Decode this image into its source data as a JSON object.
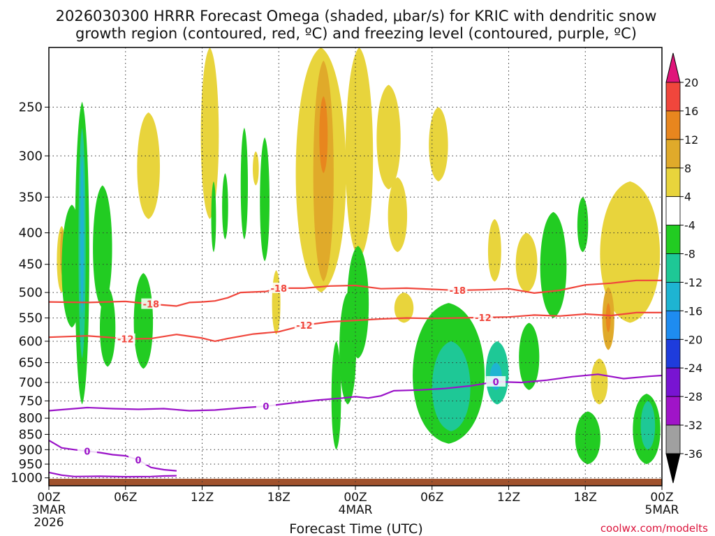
{
  "chart_data": {
    "type": "heatmap",
    "title_line1": "2026030300 HRRR Forecast Omega (shaded, μbar/s) for KRIC with dendritic snow",
    "title_line2": "growth region (contoured, red, ºC) and freezing level (contoured, purple, ºC)",
    "xlabel": "Forecast Time (UTC)",
    "credit": "coolwx.com/modelts",
    "x_range_hours": [
      0,
      48
    ],
    "y_range_hPa": [
      200,
      1030
    ],
    "x_ticks": [
      {
        "hour": 0,
        "line1": "00Z",
        "line2": "3MAR",
        "line3": "2026"
      },
      {
        "hour": 6,
        "line1": "06Z",
        "line2": "",
        "line3": ""
      },
      {
        "hour": 12,
        "line1": "12Z",
        "line2": "",
        "line3": ""
      },
      {
        "hour": 18,
        "line1": "18Z",
        "line2": "",
        "line3": ""
      },
      {
        "hour": 24,
        "line1": "00Z",
        "line2": "4MAR",
        "line3": ""
      },
      {
        "hour": 30,
        "line1": "06Z",
        "line2": "",
        "line3": ""
      },
      {
        "hour": 36,
        "line1": "12Z",
        "line2": "",
        "line3": ""
      },
      {
        "hour": 42,
        "line1": "18Z",
        "line2": "",
        "line3": ""
      },
      {
        "hour": 48,
        "line1": "00Z",
        "line2": "5MAR",
        "line3": ""
      }
    ],
    "y_ticks": [
      "250",
      "300",
      "350",
      "400",
      "450",
      "500",
      "550",
      "600",
      "650",
      "700",
      "750",
      "800",
      "850",
      "900",
      "950",
      "1000"
    ],
    "colorbar": {
      "labels": [
        "20",
        "16",
        "12",
        "8",
        "4",
        "-4",
        "-8",
        "-12",
        "-16",
        "-20",
        "-24",
        "-28",
        "-32",
        "-36"
      ],
      "over_color": "#e0157a",
      "under_color": "#000000",
      "bins": [
        {
          "from": 16,
          "to": 20,
          "color": "#f0463c"
        },
        {
          "from": 12,
          "to": 16,
          "color": "#e8861e"
        },
        {
          "from": 8,
          "to": 12,
          "color": "#e0aa2a"
        },
        {
          "from": 4,
          "to": 8,
          "color": "#e8d43c"
        },
        {
          "from": -4,
          "to": 4,
          "color": "#ffffff"
        },
        {
          "from": -8,
          "to": -4,
          "color": "#22cc22"
        },
        {
          "from": -12,
          "to": -8,
          "color": "#1ec896"
        },
        {
          "from": -16,
          "to": -12,
          "color": "#1eb4d2"
        },
        {
          "from": -20,
          "to": -16,
          "color": "#1e8cf0"
        },
        {
          "from": -24,
          "to": -20,
          "color": "#1e3cdc"
        },
        {
          "from": -28,
          "to": -24,
          "color": "#7814d2"
        },
        {
          "from": -32,
          "to": -28,
          "color": "#a014c8"
        },
        {
          "from": -36,
          "to": -32,
          "color": "#a0a0a0"
        }
      ]
    },
    "contours": [
      {
        "name": "dgz-minus18",
        "label": "-18",
        "color": "#f0463c",
        "points": [
          [
            0,
            518
          ],
          [
            3,
            519
          ],
          [
            6,
            517
          ],
          [
            8,
            522
          ],
          [
            10,
            526
          ],
          [
            11,
            519
          ],
          [
            12,
            518
          ],
          [
            13,
            516
          ],
          [
            14,
            510
          ],
          [
            15,
            500
          ],
          [
            17,
            498
          ],
          [
            18,
            492
          ],
          [
            20,
            492
          ],
          [
            22,
            488
          ],
          [
            24,
            487
          ],
          [
            26,
            493
          ],
          [
            28,
            492
          ],
          [
            30,
            494
          ],
          [
            32,
            496
          ],
          [
            34,
            495
          ],
          [
            36,
            493
          ],
          [
            38,
            501
          ],
          [
            40,
            496
          ],
          [
            42,
            486
          ],
          [
            44,
            483
          ],
          [
            46,
            478
          ],
          [
            48,
            478
          ]
        ]
      },
      {
        "name": "dgz-minus12",
        "label": "-12",
        "color": "#f0463c",
        "points": [
          [
            0,
            591
          ],
          [
            3,
            588
          ],
          [
            5,
            592
          ],
          [
            6,
            595
          ],
          [
            8,
            594
          ],
          [
            10,
            585
          ],
          [
            12,
            593
          ],
          [
            13,
            600
          ],
          [
            14,
            594
          ],
          [
            16,
            584
          ],
          [
            18,
            579
          ],
          [
            20,
            565
          ],
          [
            22,
            558
          ],
          [
            24,
            555
          ],
          [
            26,
            552
          ],
          [
            28,
            550
          ],
          [
            30,
            551
          ],
          [
            32,
            550
          ],
          [
            34,
            549
          ],
          [
            36,
            548
          ],
          [
            38,
            544
          ],
          [
            40,
            546
          ],
          [
            42,
            542
          ],
          [
            44,
            545
          ],
          [
            46,
            539
          ],
          [
            48,
            539
          ]
        ]
      },
      {
        "name": "freezing-level-main",
        "label": "0",
        "color": "#9a12c8",
        "points": [
          [
            0,
            778
          ],
          [
            2,
            772
          ],
          [
            3,
            769
          ],
          [
            5,
            772
          ],
          [
            7,
            774
          ],
          [
            9,
            772
          ],
          [
            11,
            778
          ],
          [
            13,
            776
          ],
          [
            15,
            770
          ],
          [
            17,
            765
          ],
          [
            19,
            756
          ],
          [
            21,
            748
          ],
          [
            23,
            742
          ],
          [
            24,
            738
          ],
          [
            25,
            742
          ],
          [
            26,
            736
          ],
          [
            27,
            722
          ],
          [
            29,
            720
          ],
          [
            31,
            716
          ],
          [
            33,
            709
          ],
          [
            35,
            698
          ],
          [
            37,
            700
          ],
          [
            39,
            694
          ],
          [
            41,
            685
          ],
          [
            43,
            679
          ],
          [
            45,
            690
          ],
          [
            47,
            684
          ],
          [
            48,
            682
          ]
        ]
      },
      {
        "name": "freezing-level-low",
        "label": "0",
        "color": "#9a12c8",
        "points": [
          [
            0,
            869
          ],
          [
            1,
            894
          ],
          [
            2,
            900
          ],
          [
            3,
            905
          ],
          [
            4,
            910
          ],
          [
            5,
            917
          ],
          [
            6,
            921
          ],
          [
            7,
            935
          ],
          [
            8,
            962
          ],
          [
            9,
            970
          ],
          [
            10,
            974
          ]
        ]
      },
      {
        "name": "freezing-level-surface",
        "label": "",
        "color": "#9a12c8",
        "points": [
          [
            0,
            980
          ],
          [
            1,
            990
          ],
          [
            2,
            995
          ],
          [
            4,
            994
          ],
          [
            6,
            996
          ],
          [
            8,
            995
          ],
          [
            9,
            993
          ],
          [
            10,
            992
          ]
        ]
      }
    ],
    "omega_regions": [
      {
        "kind": "up",
        "value": 6,
        "cx": 1,
        "p": [
          390,
          500
        ],
        "w": 0.8
      },
      {
        "kind": "up",
        "value": 10,
        "cx": 1.05,
        "p": [
          395,
          470
        ],
        "w": 0.35
      },
      {
        "kind": "down",
        "value": -6,
        "cx": 1.8,
        "p": [
          360,
          570
        ],
        "w": 1.7
      },
      {
        "kind": "down",
        "value": -6,
        "cx": 2.6,
        "p": [
          245,
          760
        ],
        "w": 1.2
      },
      {
        "kind": "down",
        "value": -10,
        "cx": 2.6,
        "p": [
          270,
          640
        ],
        "w": 0.6
      },
      {
        "kind": "down",
        "value": -14,
        "cx": 2.6,
        "p": [
          300,
          540
        ],
        "w": 0.3
      },
      {
        "kind": "down",
        "value": -6,
        "cx": 4.2,
        "p": [
          335,
          530
        ],
        "w": 1.6
      },
      {
        "kind": "down",
        "value": -6,
        "cx": 4.6,
        "p": [
          490,
          660
        ],
        "w": 1.3
      },
      {
        "kind": "down",
        "value": -6,
        "cx": 7.4,
        "p": [
          465,
          665
        ],
        "w": 1.6
      },
      {
        "kind": "up",
        "value": 6,
        "cx": 7.8,
        "p": [
          255,
          380
        ],
        "w": 1.9
      },
      {
        "kind": "up",
        "value": 6,
        "cx": 12.6,
        "p": [
          200,
          380
        ],
        "w": 1.5
      },
      {
        "kind": "down",
        "value": -6,
        "cx": 15.3,
        "p": [
          270,
          410
        ],
        "w": 0.6
      },
      {
        "kind": "down",
        "value": -6,
        "cx": 12.9,
        "p": [
          330,
          430
        ],
        "w": 0.4
      },
      {
        "kind": "down",
        "value": -6,
        "cx": 13.8,
        "p": [
          320,
          410
        ],
        "w": 0.5
      },
      {
        "kind": "up",
        "value": 6,
        "cx": 16.2,
        "p": [
          295,
          335
        ],
        "w": 0.5
      },
      {
        "kind": "down",
        "value": -6,
        "cx": 16.9,
        "p": [
          280,
          445
        ],
        "w": 0.8
      },
      {
        "kind": "up",
        "value": 6,
        "cx": 17.8,
        "p": [
          460,
          585
        ],
        "w": 0.7
      },
      {
        "kind": "up",
        "value": 6,
        "cx": 21.3,
        "p": [
          200,
          500
        ],
        "w": 4.2
      },
      {
        "kind": "up",
        "value": 10,
        "cx": 21.5,
        "p": [
          210,
          480
        ],
        "w": 1.7
      },
      {
        "kind": "up",
        "value": 14,
        "cx": 21.5,
        "p": [
          240,
          320
        ],
        "w": 0.7
      },
      {
        "kind": "up",
        "value": 6,
        "cx": 24.3,
        "p": [
          200,
          440
        ],
        "w": 2.3
      },
      {
        "kind": "up",
        "value": 6,
        "cx": 26.6,
        "p": [
          230,
          340
        ],
        "w": 2.0
      },
      {
        "kind": "down",
        "value": -6,
        "cx": 24.2,
        "p": [
          420,
          640
        ],
        "w": 1.8
      },
      {
        "kind": "down",
        "value": -6,
        "cx": 23.4,
        "p": [
          500,
          760
        ],
        "w": 1.4
      },
      {
        "kind": "down",
        "value": -6,
        "cx": 22.5,
        "p": [
          600,
          900
        ],
        "w": 0.8
      },
      {
        "kind": "up",
        "value": 6,
        "cx": 27.3,
        "p": [
          325,
          430
        ],
        "w": 1.6
      },
      {
        "kind": "up",
        "value": 6,
        "cx": 27.8,
        "p": [
          500,
          560
        ],
        "w": 1.6
      },
      {
        "kind": "up",
        "value": 6,
        "cx": 30.5,
        "p": [
          250,
          330
        ],
        "w": 1.6
      },
      {
        "kind": "down",
        "value": -6,
        "cx": 31.3,
        "p": [
          520,
          880
        ],
        "w": 6.0
      },
      {
        "kind": "down",
        "value": -10,
        "cx": 31.5,
        "p": [
          600,
          840
        ],
        "w": 3.2
      },
      {
        "kind": "down",
        "value": -10,
        "cx": 35.1,
        "p": [
          600,
          760
        ],
        "w": 1.9
      },
      {
        "kind": "down",
        "value": -14,
        "cx": 35.0,
        "p": [
          650,
          720
        ],
        "w": 1.0
      },
      {
        "kind": "up",
        "value": 6,
        "cx": 34.9,
        "p": [
          380,
          480
        ],
        "w": 1.1
      },
      {
        "kind": "up",
        "value": 6,
        "cx": 37.4,
        "p": [
          400,
          500
        ],
        "w": 1.8
      },
      {
        "kind": "down",
        "value": -6,
        "cx": 39.5,
        "p": [
          370,
          550
        ],
        "w": 2.2
      },
      {
        "kind": "down",
        "value": -6,
        "cx": 37.6,
        "p": [
          560,
          720
        ],
        "w": 1.7
      },
      {
        "kind": "down",
        "value": -6,
        "cx": 41.8,
        "p": [
          350,
          430
        ],
        "w": 0.9
      },
      {
        "kind": "down",
        "value": -6,
        "cx": 42.2,
        "p": [
          780,
          950
        ],
        "w": 2.1
      },
      {
        "kind": "up",
        "value": 6,
        "cx": 45.5,
        "p": [
          330,
          560
        ],
        "w": 5.0
      },
      {
        "kind": "up",
        "value": 10,
        "cx": 43.8,
        "p": [
          490,
          620
        ],
        "w": 1.0
      },
      {
        "kind": "up",
        "value": 14,
        "cx": 43.8,
        "p": [
          520,
          580
        ],
        "w": 0.4
      },
      {
        "kind": "down",
        "value": -6,
        "cx": 46.8,
        "p": [
          730,
          950
        ],
        "w": 2.3
      },
      {
        "kind": "down",
        "value": -10,
        "cx": 46.9,
        "p": [
          750,
          900
        ],
        "w": 1.2
      },
      {
        "kind": "up",
        "value": 6,
        "cx": 43.1,
        "p": [
          640,
          760
        ],
        "w": 1.4
      }
    ]
  }
}
